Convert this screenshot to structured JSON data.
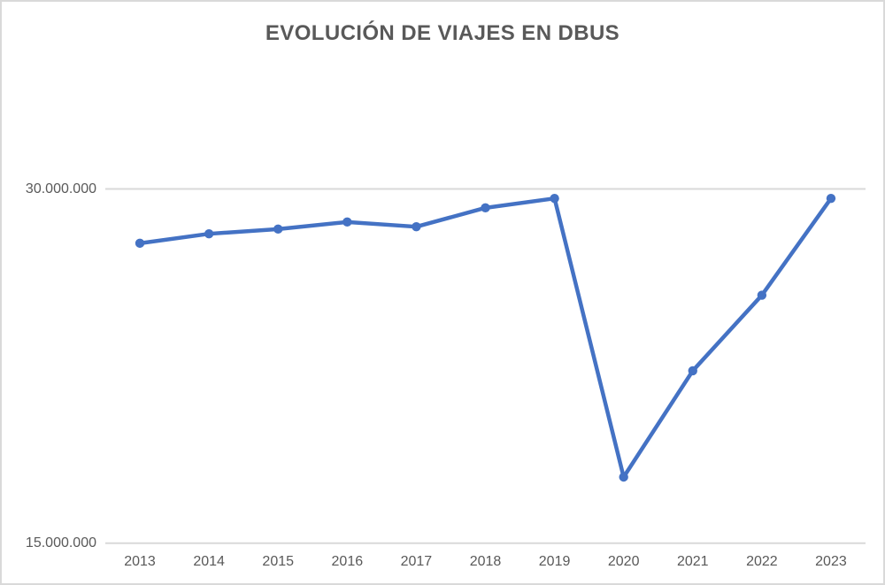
{
  "chart_data": {
    "type": "line",
    "title": "EVOLUCIÓN DE VIAJES EN DBUS",
    "categories": [
      "2013",
      "2014",
      "2015",
      "2016",
      "2017",
      "2018",
      "2019",
      "2020",
      "2021",
      "2022",
      "2023"
    ],
    "values": [
      27700000,
      28100000,
      28300000,
      28600000,
      28400000,
      29200000,
      29600000,
      17800000,
      22300000,
      25500000,
      29600000
    ],
    "xlabel": "",
    "ylabel": "",
    "ylim": [
      15000000,
      30000000
    ],
    "yticks": [
      {
        "value": 30000000,
        "label": "30.000.000"
      },
      {
        "value": 15000000,
        "label": "15.000.000"
      }
    ],
    "grid": "horizontal-only",
    "legend": "none",
    "marker": "circle"
  },
  "colors": {
    "line": "#4472C4",
    "marker": "#4472C4",
    "gridline": "#D9D9D9",
    "frame_border": "#D9D9D9",
    "text": "#595959"
  }
}
